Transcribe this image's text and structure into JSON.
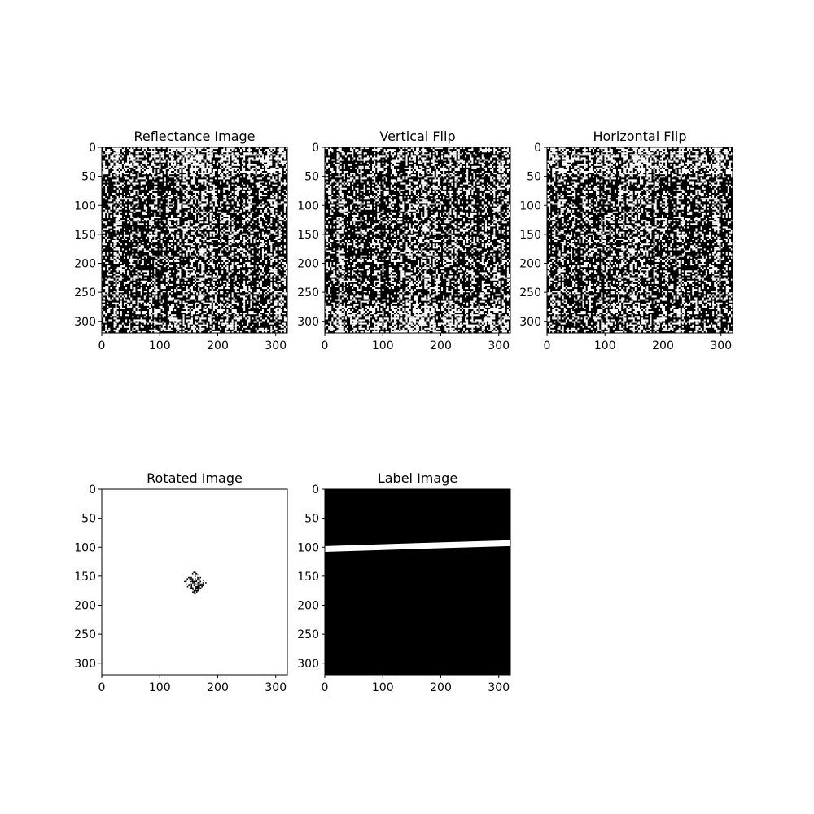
{
  "chart_data": [
    {
      "type": "heatmap",
      "title": "Reflectance Image",
      "colormap": "binary",
      "pattern": "noise-streaks",
      "xlim": [
        0,
        320
      ],
      "ylim": [
        320,
        0
      ],
      "xticks": [
        0,
        100,
        200,
        300
      ],
      "yticks": [
        0,
        50,
        100,
        150,
        200,
        250,
        300
      ]
    },
    {
      "type": "heatmap",
      "title": "Vertical Flip",
      "colormap": "binary",
      "pattern": "noise-streaks-flipped-vertical",
      "xlim": [
        0,
        320
      ],
      "ylim": [
        320,
        0
      ],
      "xticks": [
        0,
        100,
        200,
        300
      ],
      "yticks": [
        0,
        50,
        100,
        150,
        200,
        250,
        300
      ]
    },
    {
      "type": "heatmap",
      "title": "Horizontal Flip",
      "colormap": "binary",
      "pattern": "noise-streaks-flipped-horizontal",
      "xlim": [
        0,
        320
      ],
      "ylim": [
        320,
        0
      ],
      "xticks": [
        0,
        100,
        200,
        300
      ],
      "yticks": [
        0,
        50,
        100,
        150,
        200,
        250,
        300
      ]
    },
    {
      "type": "heatmap",
      "title": "Rotated Image",
      "colormap": "white-with-central-speckle",
      "pattern": "center-diamond",
      "feature": {
        "center": [
          160,
          160
        ],
        "half_width": 20
      },
      "xlim": [
        0,
        320
      ],
      "ylim": [
        320,
        0
      ],
      "xticks": [
        0,
        100,
        200,
        300
      ],
      "yticks": [
        0,
        50,
        100,
        150,
        200,
        250,
        300
      ]
    },
    {
      "type": "heatmap",
      "title": "Label Image",
      "colormap": "black-with-white-band",
      "pattern": "sloped-band",
      "feature": {
        "band_start": [
          0,
          103
        ],
        "band_end": [
          320,
          93
        ],
        "band_thickness": 10
      },
      "xlim": [
        0,
        320
      ],
      "ylim": [
        320,
        0
      ],
      "xticks": [
        0,
        100,
        200,
        300
      ],
      "yticks": [
        0,
        50,
        100,
        150,
        200,
        250,
        300
      ]
    }
  ]
}
